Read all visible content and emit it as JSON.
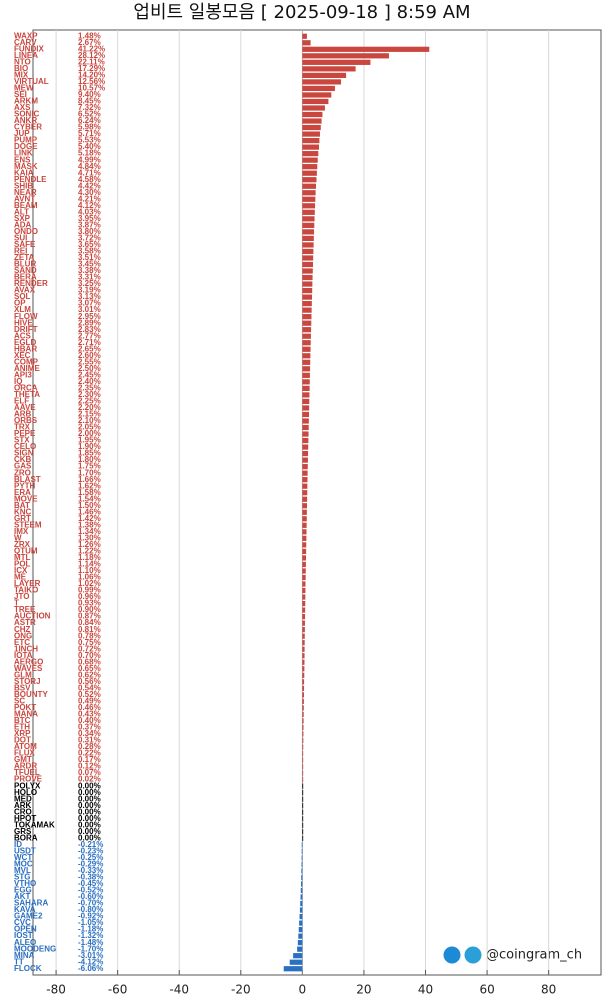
{
  "chart_data": {
    "type": "hbar",
    "title": "업비트 일봉모음 [ 2025-09-18 ]  8:59 AM",
    "credit": "@coingram_ch",
    "categories": [
      "WAXP",
      "CARV",
      "FUNDIX",
      "LINEA",
      "NTO",
      "BIO",
      "MIX",
      "VIRTUAL",
      "MEW",
      "SEI",
      "ARKM",
      "AXS",
      "SONIC",
      "ANKR",
      "CYBER",
      "JUP",
      "PUMP",
      "DOGE",
      "LINK",
      "ENS",
      "MASK",
      "KAIA",
      "PENDLE",
      "SHIB",
      "NEAR",
      "AVNT",
      "BEAM",
      "ALT",
      "SXP",
      "ADA",
      "ONDO",
      "SUI",
      "SAFE",
      "REI",
      "ZETA",
      "BLUR",
      "SAND",
      "BERA",
      "RENDER",
      "AVAX",
      "SOL",
      "OP",
      "XLM",
      "FLOW",
      "HIVE",
      "DRIFT",
      "ACS",
      "EGLD",
      "HBAR",
      "XEC",
      "COMP",
      "ANIME",
      "API3",
      "IQ",
      "ORCA",
      "THETA",
      "ELF",
      "AAVE",
      "ARB",
      "ORBS",
      "TRX",
      "PEPE",
      "STX",
      "CELO",
      "SIGN",
      "CKB",
      "GAS",
      "ZRO",
      "BLAST",
      "PYTH",
      "ERA",
      "MOVE",
      "BAT",
      "KNC",
      "GRT",
      "STEEM",
      "IMX",
      "W",
      "ZRX",
      "QTUM",
      "MTL",
      "POL",
      "ICX",
      "ME",
      "LAYER",
      "TAIKO",
      "JTO",
      "T",
      "TREE",
      "AUCTION",
      "ASTR",
      "CHZ",
      "ONG",
      "ETC",
      "1INCH",
      "IOTA",
      "AERGO",
      "WAVES",
      "GLM",
      "STORJ",
      "BSV",
      "BOUNTY",
      "SC",
      "POKT",
      "MANA",
      "BTC",
      "ETH",
      "XRP",
      "DOT",
      "ATOM",
      "FLUX",
      "GMT",
      "ARDR",
      "TFUEL",
      "PROVE",
      "POLYX",
      "HOLO",
      "MED",
      "ARK",
      "CRO",
      "HPOT",
      "TOKAMAK",
      "GRS",
      "BORA",
      "ID",
      "USDT",
      "WCT",
      "MOC",
      "MVL",
      "STG",
      "VTHO",
      "EGG",
      "AKT",
      "SAHARA",
      "KAVA",
      "GAME2",
      "CVC",
      "OPEN",
      "IOST",
      "ALEO",
      "MOODENG",
      "MINA",
      "TT",
      "FLOCK"
    ],
    "values": [
      1.48,
      2.67,
      41.22,
      28.12,
      22.11,
      17.29,
      14.2,
      12.56,
      10.57,
      9.4,
      8.45,
      7.32,
      6.52,
      6.24,
      5.98,
      5.71,
      5.53,
      5.4,
      5.18,
      4.99,
      4.84,
      4.71,
      4.58,
      4.42,
      4.3,
      4.21,
      4.12,
      4.03,
      3.95,
      3.87,
      3.8,
      3.72,
      3.65,
      3.58,
      3.51,
      3.45,
      3.38,
      3.31,
      3.25,
      3.19,
      3.13,
      3.07,
      3.01,
      2.95,
      2.89,
      2.83,
      2.77,
      2.71,
      2.65,
      2.6,
      2.55,
      2.5,
      2.45,
      2.4,
      2.35,
      2.3,
      2.25,
      2.2,
      2.15,
      2.1,
      2.05,
      2.0,
      1.95,
      1.9,
      1.85,
      1.8,
      1.75,
      1.7,
      1.66,
      1.62,
      1.58,
      1.54,
      1.5,
      1.46,
      1.42,
      1.38,
      1.34,
      1.3,
      1.26,
      1.22,
      1.18,
      1.14,
      1.1,
      1.06,
      1.02,
      0.99,
      0.96,
      0.93,
      0.9,
      0.87,
      0.84,
      0.81,
      0.78,
      0.75,
      0.72,
      0.7,
      0.68,
      0.65,
      0.62,
      0.56,
      0.54,
      0.52,
      0.49,
      0.46,
      0.43,
      0.4,
      0.37,
      0.34,
      0.31,
      0.28,
      0.22,
      0.17,
      0.12,
      0.07,
      0.02,
      0,
      0,
      0,
      0,
      0,
      0,
      0,
      0,
      0,
      -0.21,
      -0.23,
      -0.25,
      -0.29,
      -0.33,
      -0.38,
      -0.45,
      -0.52,
      -0.6,
      -0.7,
      -0.8,
      -0.92,
      -1.05,
      -1.18,
      -1.32,
      -1.48,
      -1.7,
      -3.01,
      -4.12,
      -6.06
    ],
    "value_labels": [
      "1.48%",
      "2.67%",
      "41.22%",
      "28.12%",
      "22.11%",
      "17.29%",
      "14.20%",
      "12.56%",
      "10.57%",
      "9.40%",
      "8.45%",
      "7.32%",
      "6.52%",
      "6.24%",
      "5.98%",
      "5.71%",
      "5.53%",
      "5.40%",
      "5.18%",
      "4.99%",
      "4.84%",
      "4.71%",
      "4.58%",
      "4.42%",
      "4.30%",
      "4.21%",
      "4.12%",
      "4.03%",
      "3.95%",
      "3.87%",
      "3.80%",
      "3.72%",
      "3.65%",
      "3.58%",
      "3.51%",
      "3.45%",
      "3.38%",
      "3.31%",
      "3.25%",
      "3.19%",
      "3.13%",
      "3.07%",
      "3.01%",
      "2.95%",
      "2.89%",
      "2.83%",
      "2.77%",
      "2.71%",
      "2.65%",
      "2.60%",
      "2.55%",
      "2.50%",
      "2.45%",
      "2.40%",
      "2.35%",
      "2.30%",
      "2.25%",
      "2.20%",
      "2.15%",
      "2.10%",
      "2.05%",
      "2.00%",
      "1.95%",
      "1.90%",
      "1.85%",
      "1.80%",
      "1.75%",
      "1.70%",
      "1.66%",
      "1.62%",
      "1.58%",
      "1.54%",
      "1.50%",
      "1.46%",
      "1.42%",
      "1.38%",
      "1.34%",
      "1.30%",
      "1.26%",
      "1.22%",
      "1.18%",
      "1.14%",
      "1.10%",
      "1.06%",
      "1.02%",
      "0.99%",
      "0.96%",
      "0.93%",
      "0.90%",
      "0.87%",
      "0.84%",
      "0.81%",
      "0.78%",
      "0.75%",
      "0.72%",
      "0.70%",
      "0.68%",
      "0.65%",
      "0.62%",
      "0.56%",
      "0.54%",
      "0.52%",
      "0.49%",
      "0.46%",
      "0.43%",
      "0.40%",
      "0.37%",
      "0.34%",
      "0.31%",
      "0.28%",
      "0.22%",
      "0.17%",
      "0.12%",
      "0.07%",
      "0.02%",
      "0.00%",
      "0.00%",
      "0.00%",
      "0.00%",
      "0.00%",
      "0.00%",
      "0.00%",
      "0.00%",
      "0.00%",
      "-0.21%",
      "-0.23%",
      "-0.25%",
      "-0.29%",
      "-0.33%",
      "-0.38%",
      "-0.45%",
      "-0.52%",
      "-0.60%",
      "-0.70%",
      "-0.80%",
      "-0.92%",
      "-1.05%",
      "-1.18%",
      "-1.32%",
      "-1.48%",
      "-1.70%",
      "-3.01%",
      "-4.12%",
      "-6.06%"
    ],
    "up_color": "#c9473f",
    "flat_color": "#000000",
    "down_color": "#2a6fc0",
    "xlim": [
      -87.5,
      97
    ],
    "xticks": [
      -80,
      -60,
      -40,
      -20,
      0,
      20,
      40,
      60,
      80
    ],
    "grid": true
  }
}
